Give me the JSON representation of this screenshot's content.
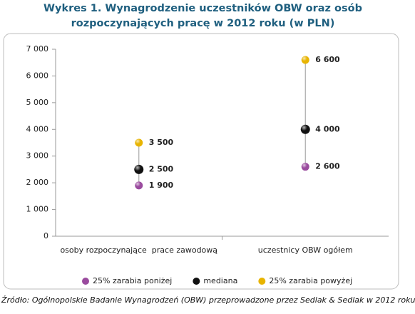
{
  "chart_data": {
    "type": "dot",
    "title": "Wykres 1. Wynagrodzenie uczestników OBW oraz osób rozpoczynających pracę w 2012 roku (w PLN)",
    "categories": [
      "osoby rozpoczynające  prace zawodową",
      "uczestnicy OBW ogółem"
    ],
    "series": [
      {
        "name": "25% zarabia poniżej",
        "color": "#9a4b9e",
        "values": [
          1900,
          2600
        ],
        "value_labels": [
          "1 900",
          "2 600"
        ]
      },
      {
        "name": "mediana",
        "color": "#111111",
        "values": [
          2500,
          4000
        ],
        "value_labels": [
          "2 500",
          "4 000"
        ]
      },
      {
        "name": "25% zarabia powyżej",
        "color": "#e8b400",
        "values": [
          3500,
          6600
        ],
        "value_labels": [
          "3 500",
          "6 600"
        ]
      }
    ],
    "ylim": [
      0,
      7000
    ],
    "yticks": [
      0,
      {
        "value": 1000,
        "label": "1 000"
      },
      {
        "value": 2000,
        "label": "2 000"
      },
      {
        "value": 3000,
        "label": "3 000"
      },
      {
        "value": 4000,
        "label": "4 000"
      },
      {
        "value": 5000,
        "label": "5 000"
      },
      {
        "value": 6000,
        "label": "6 000"
      },
      {
        "value": 7000,
        "label": "7 000"
      }
    ],
    "grid": false,
    "legend": "bottom",
    "source": "Źródło: Ogólnopolskie Badanie Wynagrodzeń (OBW) przeprowadzone przez Sedlak & Sedlak w 2012 roku"
  }
}
